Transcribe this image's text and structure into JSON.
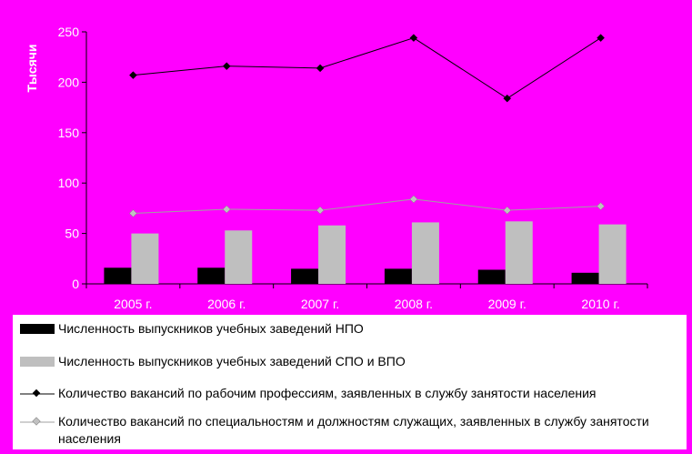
{
  "chart_data": {
    "type": "bar",
    "ylabel": "Тысячи",
    "ylim": [
      0,
      250
    ],
    "yticks": [
      0,
      50,
      100,
      150,
      200,
      250
    ],
    "categories": [
      "2005 г.",
      "2006 г.",
      "2007 г.",
      "2008 г.",
      "2009 г.",
      "2010 г."
    ],
    "grid": false,
    "legend_placement": "bottom",
    "series": [
      {
        "name": "Численность выпускников учебных заведений НПО",
        "kind": "bar",
        "color": "#000000",
        "values": [
          16,
          16,
          15,
          15,
          14,
          11
        ]
      },
      {
        "name": "Численность выпускников учебных заведений СПО и ВПО",
        "kind": "bar",
        "color": "#bfbfbf",
        "values": [
          50,
          53,
          58,
          61,
          62,
          59
        ]
      },
      {
        "name": "Количество вакансий по рабочим профессиям, заявленных в службу занятости населения",
        "kind": "line",
        "color": "#000000",
        "values": [
          207,
          216,
          214,
          244,
          184,
          244
        ]
      },
      {
        "name": "Количество вакансий по специальностям и должностям служащих, заявленных в службу занятости населения",
        "kind": "line",
        "color": "#c0c0c0",
        "values": [
          70,
          74,
          73,
          84,
          73,
          77
        ]
      }
    ]
  }
}
